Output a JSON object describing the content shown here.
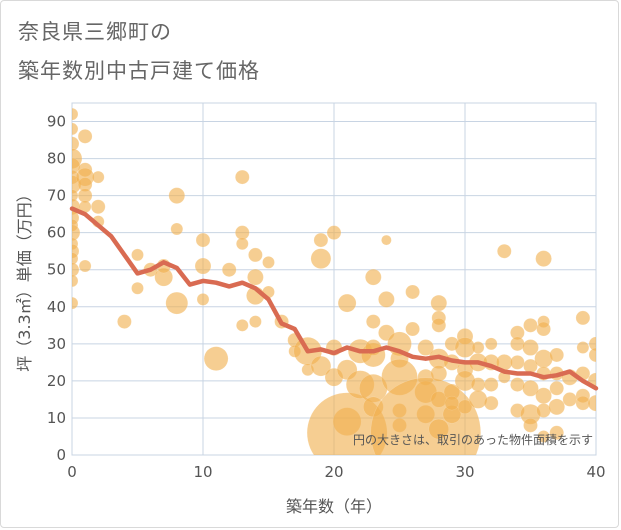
{
  "title_line1": "奈良県三郷町の",
  "title_line2": "築年数別中古戸建て価格",
  "chart_data": {
    "type": "scatter",
    "xlabel": "築年数（年）",
    "ylabel": "坪（3.3㎡）単価（万円）",
    "xlim": [
      0,
      40
    ],
    "ylim": [
      0,
      95
    ],
    "x_ticks": [
      "0",
      "10",
      "20",
      "30",
      "40"
    ],
    "y_ticks": [
      "0",
      "10",
      "20",
      "30",
      "40",
      "50",
      "60",
      "70",
      "80",
      "90"
    ],
    "grid": true,
    "annotation": "円の大きさは、取引のあった物件面積を示す",
    "colors": {
      "bubble": "#F0B04F",
      "line": "#D96B52",
      "grid": "#C8D4E3"
    },
    "series": [
      {
        "type": "line",
        "points": [
          [
            0,
            66.5
          ],
          [
            1,
            65
          ],
          [
            2,
            62
          ],
          [
            3,
            59
          ],
          [
            4,
            54
          ],
          [
            5,
            49
          ],
          [
            6,
            50
          ],
          [
            7,
            52
          ],
          [
            8,
            50.5
          ],
          [
            9,
            46
          ],
          [
            10,
            47
          ],
          [
            11,
            46.5
          ],
          [
            12,
            45.5
          ],
          [
            13,
            46.5
          ],
          [
            14,
            45
          ],
          [
            15,
            42
          ],
          [
            16,
            35.5
          ],
          [
            17,
            34
          ],
          [
            18,
            28
          ],
          [
            19,
            28.5
          ],
          [
            20,
            27.5
          ],
          [
            21,
            29
          ],
          [
            22,
            28
          ],
          [
            23,
            28
          ],
          [
            24,
            29
          ],
          [
            25,
            28
          ],
          [
            26,
            26.5
          ],
          [
            27,
            26
          ],
          [
            28,
            26.5
          ],
          [
            29,
            25.5
          ],
          [
            30,
            25
          ],
          [
            31,
            25
          ],
          [
            32,
            24
          ],
          [
            33,
            22.5
          ],
          [
            34,
            22
          ],
          [
            35,
            22
          ],
          [
            36,
            21
          ],
          [
            37,
            21.5
          ],
          [
            38,
            22.5
          ],
          [
            39,
            20
          ],
          [
            40,
            18
          ]
        ]
      },
      {
        "type": "bubble",
        "points": [
          [
            0,
            92,
            6
          ],
          [
            0,
            88,
            6
          ],
          [
            0,
            84,
            7
          ],
          [
            0,
            80,
            10
          ],
          [
            0,
            78,
            8
          ],
          [
            0,
            75,
            7
          ],
          [
            0,
            73,
            9
          ],
          [
            0,
            70,
            6
          ],
          [
            0,
            67,
            8
          ],
          [
            0,
            64,
            7
          ],
          [
            0,
            62,
            6
          ],
          [
            0,
            60,
            8
          ],
          [
            0,
            57,
            6
          ],
          [
            0,
            55,
            7
          ],
          [
            0,
            53,
            6
          ],
          [
            0,
            50,
            7
          ],
          [
            0,
            47,
            6
          ],
          [
            0,
            41,
            6
          ],
          [
            1,
            86,
            7
          ],
          [
            1,
            77,
            7
          ],
          [
            1,
            75,
            9
          ],
          [
            1,
            73,
            7
          ],
          [
            1,
            70,
            7
          ],
          [
            1,
            67,
            6
          ],
          [
            1,
            51,
            6
          ],
          [
            2,
            75,
            6
          ],
          [
            2,
            67,
            7
          ],
          [
            2,
            63,
            6
          ],
          [
            4,
            36,
            7
          ],
          [
            5,
            54,
            6
          ],
          [
            5,
            45,
            6
          ],
          [
            6,
            50,
            7
          ],
          [
            7,
            48,
            9
          ],
          [
            7,
            51,
            7
          ],
          [
            8,
            70,
            8
          ],
          [
            8,
            61,
            6
          ],
          [
            8,
            41,
            11
          ],
          [
            10,
            58,
            7
          ],
          [
            10,
            51,
            8
          ],
          [
            10,
            42,
            6
          ],
          [
            11,
            26,
            12
          ],
          [
            12,
            50,
            7
          ],
          [
            13,
            75,
            7
          ],
          [
            13,
            60,
            7
          ],
          [
            13,
            57,
            6
          ],
          [
            13,
            35,
            6
          ],
          [
            14,
            54,
            7
          ],
          [
            14,
            48,
            8
          ],
          [
            14,
            43,
            9
          ],
          [
            14,
            36,
            6
          ],
          [
            15,
            52,
            6
          ],
          [
            15,
            44,
            6
          ],
          [
            16,
            36,
            7
          ],
          [
            17,
            31,
            7
          ],
          [
            17,
            28,
            6
          ],
          [
            18,
            28,
            14
          ],
          [
            18,
            23,
            6
          ],
          [
            19,
            58,
            7
          ],
          [
            19,
            53,
            10
          ],
          [
            19,
            24,
            10
          ],
          [
            20,
            60,
            7
          ],
          [
            20,
            29,
            8
          ],
          [
            20,
            21,
            9
          ],
          [
            21,
            41,
            9
          ],
          [
            21,
            23,
            10
          ],
          [
            21,
            9,
            14
          ],
          [
            21,
            6,
            40
          ],
          [
            22,
            28,
            12
          ],
          [
            22,
            19,
            14
          ],
          [
            23,
            48,
            8
          ],
          [
            23,
            36,
            7
          ],
          [
            23,
            27,
            12
          ],
          [
            23,
            18,
            14
          ],
          [
            23,
            13,
            10
          ],
          [
            23,
            29,
            8
          ],
          [
            24,
            58,
            5
          ],
          [
            24,
            42,
            8
          ],
          [
            24,
            33,
            8
          ],
          [
            25,
            30,
            12
          ],
          [
            25,
            26,
            9
          ],
          [
            25,
            21,
            18
          ],
          [
            25,
            12,
            7
          ],
          [
            25,
            8,
            7
          ],
          [
            26,
            44,
            7
          ],
          [
            26,
            34,
            7
          ],
          [
            27,
            29,
            8
          ],
          [
            27,
            21,
            8
          ],
          [
            27,
            17,
            11
          ],
          [
            27,
            11,
            9
          ],
          [
            27,
            6,
            55
          ],
          [
            28,
            41,
            8
          ],
          [
            28,
            37,
            7
          ],
          [
            28,
            35,
            7
          ],
          [
            28,
            26,
            10
          ],
          [
            28,
            22,
            8
          ],
          [
            28,
            15,
            8
          ],
          [
            28,
            7,
            10
          ],
          [
            29,
            30,
            7
          ],
          [
            29,
            25,
            8
          ],
          [
            29,
            17,
            8
          ],
          [
            29,
            11,
            9
          ],
          [
            29,
            14,
            7
          ],
          [
            30,
            32,
            8
          ],
          [
            30,
            29,
            10
          ],
          [
            30,
            23,
            8
          ],
          [
            30,
            20,
            10
          ],
          [
            30,
            13,
            7
          ],
          [
            31,
            25,
            9
          ],
          [
            31,
            19,
            7
          ],
          [
            31,
            15,
            9
          ],
          [
            31,
            29,
            6
          ],
          [
            32,
            25,
            8
          ],
          [
            32,
            19,
            7
          ],
          [
            32,
            14,
            7
          ],
          [
            32,
            30,
            6
          ],
          [
            33,
            55,
            7
          ],
          [
            33,
            25,
            8
          ],
          [
            33,
            21,
            6
          ],
          [
            34,
            33,
            7
          ],
          [
            34,
            30,
            7
          ],
          [
            34,
            25,
            7
          ],
          [
            34,
            19,
            7
          ],
          [
            34,
            12,
            7
          ],
          [
            35,
            35,
            7
          ],
          [
            35,
            29,
            8
          ],
          [
            35,
            24,
            7
          ],
          [
            35,
            18,
            8
          ],
          [
            35,
            11,
            10
          ],
          [
            35,
            8,
            7
          ],
          [
            36,
            53,
            8
          ],
          [
            36,
            36,
            6
          ],
          [
            36,
            34,
            7
          ],
          [
            36,
            26,
            9
          ],
          [
            36,
            22,
            7
          ],
          [
            36,
            16,
            8
          ],
          [
            36,
            12,
            7
          ],
          [
            36,
            5,
            6
          ],
          [
            37,
            27,
            7
          ],
          [
            37,
            22,
            7
          ],
          [
            37,
            18,
            7
          ],
          [
            37,
            13,
            8
          ],
          [
            37,
            6,
            7
          ],
          [
            38,
            21,
            8
          ],
          [
            38,
            15,
            7
          ],
          [
            39,
            37,
            7
          ],
          [
            39,
            29,
            6
          ],
          [
            39,
            22,
            7
          ],
          [
            39,
            16,
            7
          ],
          [
            39,
            14,
            7
          ],
          [
            40,
            30,
            7
          ],
          [
            40,
            27,
            7
          ],
          [
            40,
            20,
            8
          ],
          [
            40,
            14,
            8
          ]
        ]
      }
    ]
  }
}
